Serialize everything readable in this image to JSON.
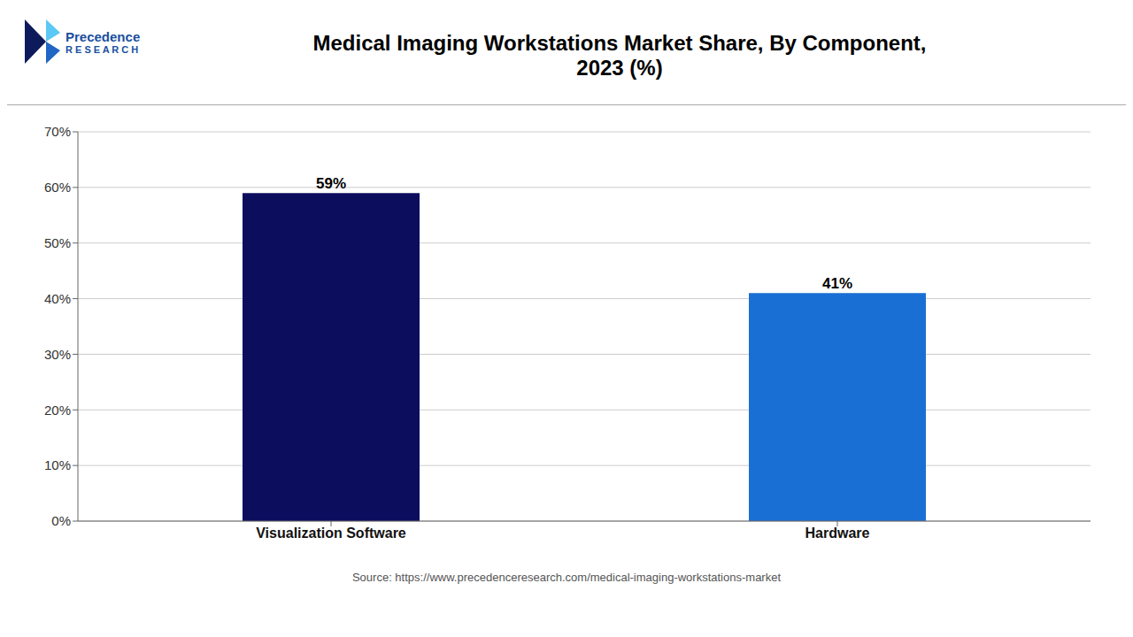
{
  "chart_data": {
    "type": "bar",
    "title": "Medical Imaging Workstations Market Share, By Component,\n2023 (%)",
    "categories": [
      "Visualization Software",
      "Hardware"
    ],
    "values": [
      59,
      41
    ],
    "value_labels": [
      "59%",
      "41%"
    ],
    "data_labels": true,
    "colors": [
      "#0d0d5e",
      "#1a6fd4"
    ],
    "ylim": [
      0,
      70
    ],
    "yticks": [
      {
        "value": 0,
        "label": "0%"
      },
      {
        "value": 10,
        "label": "10%"
      },
      {
        "value": 20,
        "label": "20%"
      },
      {
        "value": 30,
        "label": "30%"
      },
      {
        "value": 40,
        "label": "40%"
      },
      {
        "value": 50,
        "label": "50%"
      },
      {
        "value": 60,
        "label": "60%"
      },
      {
        "value": 70,
        "label": "70%"
      }
    ],
    "grid": true,
    "annotations": [
      "Precedence",
      "R E S E A R C H",
      "Source: https://www.precedenceresearch.com/medical-imaging-workstations-market"
    ]
  }
}
